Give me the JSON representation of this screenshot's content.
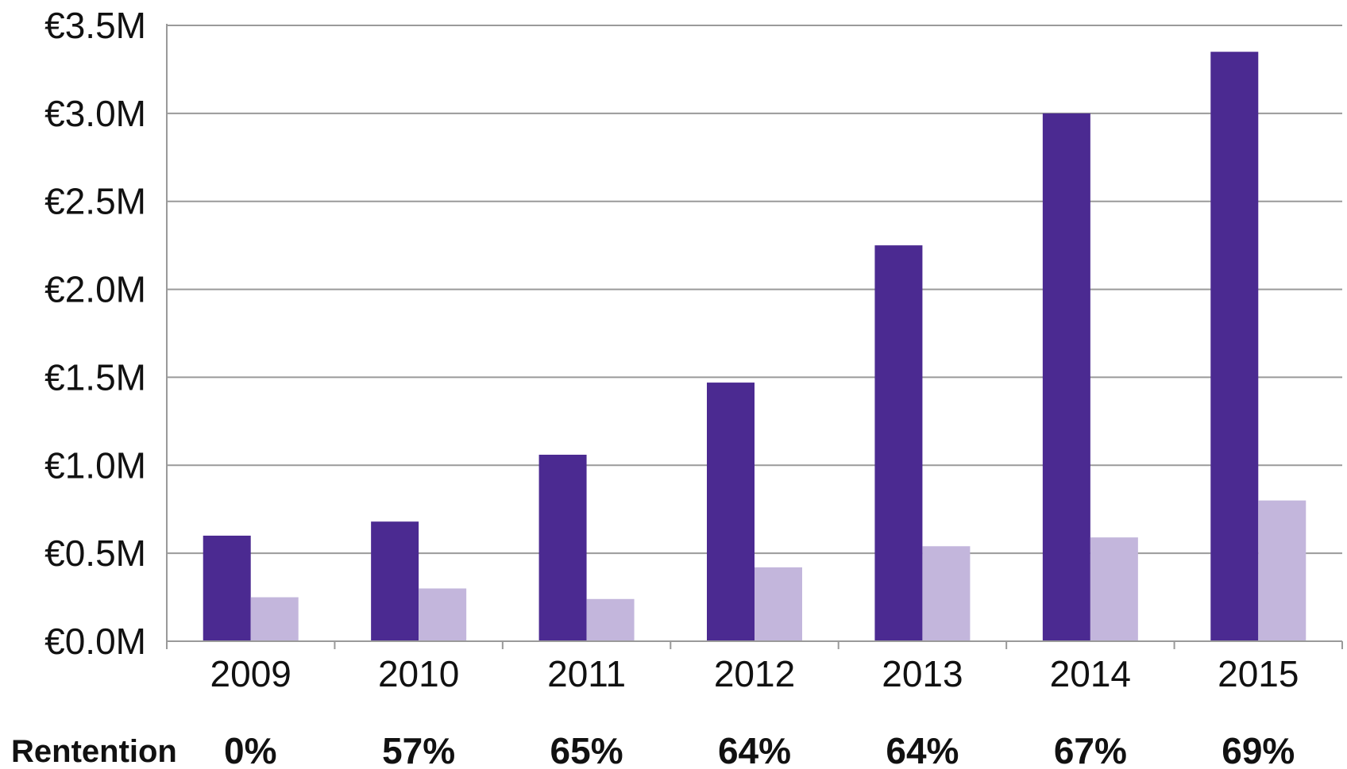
{
  "chart_data": {
    "type": "bar",
    "categories": [
      "2009",
      "2010",
      "2011",
      "2012",
      "2013",
      "2014",
      "2015"
    ],
    "series": [
      {
        "values": [
          0.6,
          0.68,
          1.06,
          1.47,
          2.25,
          3.0,
          3.35
        ]
      },
      {
        "values": [
          0.25,
          0.3,
          0.24,
          0.42,
          0.54,
          0.59,
          0.8
        ]
      }
    ],
    "ylim": [
      0,
      3.5
    ],
    "yticks": [
      "€0.0M",
      "€0.5M",
      "€1.0M",
      "€1.5M",
      "€2.0M",
      "€2.5M",
      "€3.0M",
      "€3.5M"
    ],
    "grid": true,
    "colors": [
      "#4b2a91",
      "#c3b6dc"
    ],
    "retention": {
      "label": "Rentention",
      "values": [
        "0%",
        "57%",
        "65%",
        "64%",
        "64%",
        "67%",
        "69%"
      ]
    }
  }
}
